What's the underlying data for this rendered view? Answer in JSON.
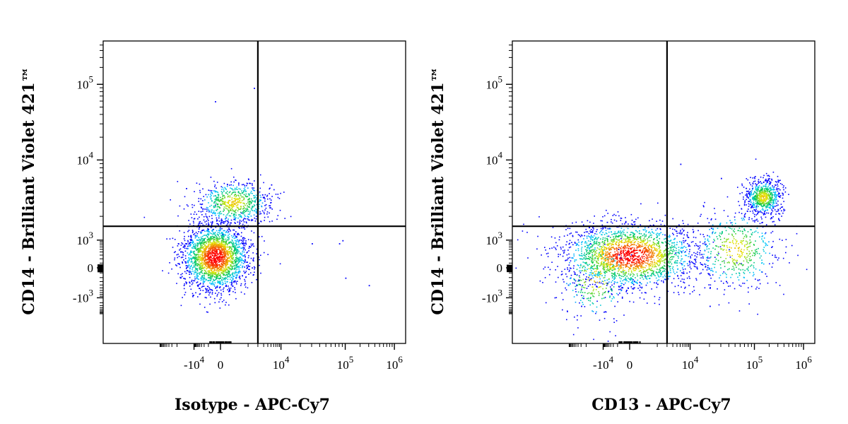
{
  "chart_data": [
    {
      "type": "scatter",
      "xlabel": "Isotype - APC-Cy7",
      "ylabel": "CD14 - Brilliant Violet 421™",
      "x_ticks": [
        {
          "value": -10000,
          "base": "-10",
          "exp": "4"
        },
        {
          "value": 0,
          "base": "0",
          "exp": ""
        },
        {
          "value": 10000,
          "base": "10",
          "exp": "4"
        },
        {
          "value": 100000,
          "base": "10",
          "exp": "5"
        },
        {
          "value": 1000000,
          "base": "10",
          "exp": "6"
        }
      ],
      "y_ticks": [
        {
          "value": 100000,
          "base": "10",
          "exp": "5"
        },
        {
          "value": 10000,
          "base": "10",
          "exp": "4"
        },
        {
          "value": 1000,
          "base": "10",
          "exp": "3"
        },
        {
          "value": 0,
          "base": "0",
          "exp": ""
        },
        {
          "value": -1000,
          "base": "-10",
          "exp": "3"
        }
      ],
      "gate": {
        "x": 2000,
        "y": 1500
      },
      "populations": [
        {
          "cx": -300,
          "cy": 250,
          "sx": 0.22,
          "sy": 0.22,
          "n": 2200
        },
        {
          "cx": 300,
          "cy": 3000,
          "sx": 0.25,
          "sy": 0.15,
          "n": 650
        }
      ],
      "scatter_points": [
        {
          "x": -90000,
          "y": 800
        },
        {
          "x": -60000,
          "y": 250
        },
        {
          "x": -30000,
          "y": 4500
        },
        {
          "x": 30000,
          "y": 800
        },
        {
          "x": 80000,
          "y": 800
        },
        {
          "x": 90000,
          "y": 1000
        },
        {
          "x": 300000,
          "y": -400
        },
        {
          "x": 100000,
          "y": -200
        },
        {
          "x": -300,
          "y": 60000
        },
        {
          "x": 1500,
          "y": 90000
        },
        {
          "x": 5000,
          "y": 5000
        },
        {
          "x": -20000,
          "y": -300
        }
      ]
    },
    {
      "type": "scatter",
      "xlabel": "CD13 - APC-Cy7",
      "ylabel": "CD14 - Brilliant Violet 421™",
      "x_ticks": [
        {
          "value": -10000,
          "base": "-10",
          "exp": "4"
        },
        {
          "value": 0,
          "base": "0",
          "exp": ""
        },
        {
          "value": 10000,
          "base": "10",
          "exp": "4"
        },
        {
          "value": 100000,
          "base": "10",
          "exp": "5"
        },
        {
          "value": 1000000,
          "base": "10",
          "exp": "6"
        }
      ],
      "y_ticks": [
        {
          "value": 100000,
          "base": "10",
          "exp": "5"
        },
        {
          "value": 10000,
          "base": "10",
          "exp": "4"
        },
        {
          "value": 1000,
          "base": "10",
          "exp": "3"
        },
        {
          "value": 0,
          "base": "0",
          "exp": ""
        },
        {
          "value": -1000,
          "base": "-10",
          "exp": "3"
        }
      ],
      "gate": {
        "x": 2000,
        "y": 1500
      },
      "populations": [
        {
          "cx": 0,
          "cy": 300,
          "sx": 0.45,
          "sy": 0.22,
          "n": 2100
        },
        {
          "cx": 150000,
          "cy": 3500,
          "sx": 0.12,
          "sy": 0.12,
          "n": 650
        },
        {
          "cx": 50000,
          "cy": 500,
          "sx": 0.3,
          "sy": 0.28,
          "n": 500
        },
        {
          "cx": -30000,
          "cy": -200,
          "sx": 0.25,
          "sy": 0.3,
          "n": 250
        }
      ],
      "scatter_points": [
        {
          "x": -200000,
          "y": -3000
        },
        {
          "x": -150000,
          "y": -1000
        },
        {
          "x": -60000,
          "y": 800
        },
        {
          "x": 5000,
          "y": 9000
        },
        {
          "x": 30000,
          "y": 6000
        },
        {
          "x": 20000,
          "y": -3000
        }
      ]
    }
  ]
}
